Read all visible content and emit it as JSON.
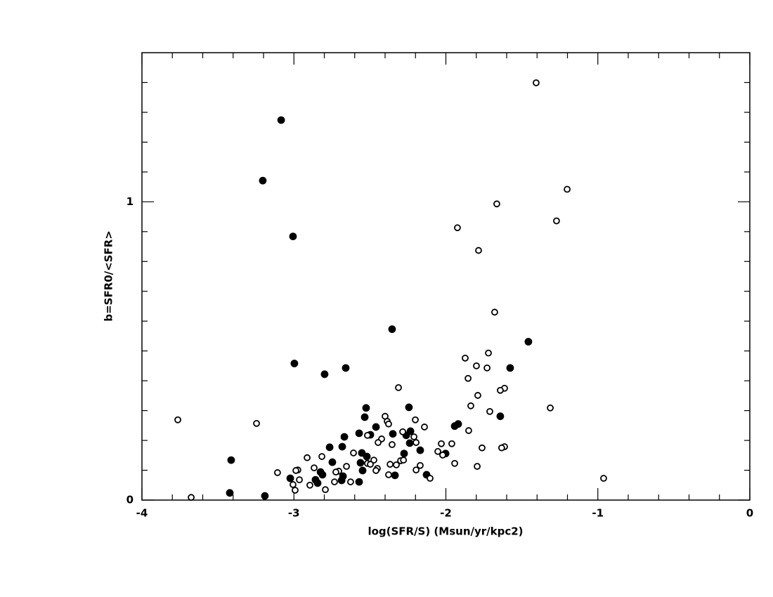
{
  "chart_data": {
    "type": "scatter",
    "xlabel": "log(SFR/S) (Msun/yr/kpc2)",
    "ylabel": "b=SFR0/<SFR>",
    "xlim": [
      -4,
      0
    ],
    "ylim": [
      0,
      1.5
    ],
    "xticks": [
      -4,
      -3,
      -2,
      -1,
      0
    ],
    "yticks": [
      0,
      1
    ],
    "xminorticks": [
      -3.8,
      -3.6,
      -3.4,
      -3.2,
      -2.8,
      -2.6,
      -2.4,
      -2.2,
      -1.8,
      -1.6,
      -1.4,
      -1.2,
      -0.8,
      -0.6,
      -0.4,
      -0.2
    ],
    "yminorticks": [
      0.1,
      0.2,
      0.3,
      0.4,
      0.5,
      0.6,
      0.7,
      0.8,
      0.9,
      1.1,
      1.2,
      1.3,
      1.4
    ],
    "series": [
      {
        "color": "#000000",
        "filled": true,
        "x": [
          -3.084,
          -3.205,
          -3.006,
          -2.354,
          -1.457,
          -2.997,
          -2.659,
          -2.798,
          -1.577,
          -2.243,
          -2.525,
          -2.534,
          -1.642,
          -1.919,
          -1.942,
          -2.46,
          -2.571,
          -2.668,
          -2.497,
          -2.349,
          -2.233,
          -2.261,
          -2.765,
          -2.682,
          -2.238,
          -2.169,
          -2.275,
          -2.002,
          -2.553,
          -2.52,
          -2.562,
          -2.747,
          -3.413,
          -2.548,
          -2.825,
          -2.812,
          -2.858,
          -2.677,
          -2.686,
          -2.844,
          -3.024,
          -2.571,
          -2.335,
          -2.127,
          -3.422,
          -3.191
        ],
        "values": [
          1.274,
          1.071,
          0.884,
          0.573,
          0.531,
          0.458,
          0.443,
          0.422,
          0.443,
          0.311,
          0.309,
          0.278,
          0.281,
          0.255,
          0.248,
          0.245,
          0.224,
          0.212,
          0.219,
          0.222,
          0.231,
          0.217,
          0.177,
          0.179,
          0.191,
          0.167,
          0.156,
          0.156,
          0.158,
          0.146,
          0.125,
          0.127,
          0.134,
          0.099,
          0.094,
          0.085,
          0.068,
          0.08,
          0.066,
          0.057,
          0.073,
          0.061,
          0.083,
          0.085,
          0.024,
          0.014
        ]
      },
      {
        "color": "#000000",
        "filled": false,
        "x": [
          -1.406,
          -1.202,
          -1.665,
          -1.924,
          -1.272,
          -1.785,
          -1.679,
          -1.72,
          -1.873,
          -1.799,
          -1.729,
          -1.854,
          -1.614,
          -1.642,
          -1.79,
          -2.312,
          -1.836,
          -1.313,
          -3.764,
          -3.246,
          -2.4,
          -2.386,
          -2.377,
          -2.201,
          -2.141,
          -1.711,
          -1.85,
          -2.284,
          -2.21,
          -2.516,
          -2.423,
          -2.446,
          -2.354,
          -2.196,
          -2.03,
          -1.961,
          -1.762,
          -1.614,
          -1.633,
          -2.053,
          -2.021,
          -1.942,
          -2.608,
          -2.474,
          -2.298,
          -2.279,
          -2.326,
          -2.367,
          -2.516,
          -2.497,
          -2.451,
          -2.46,
          -2.654,
          -2.705,
          -2.816,
          -2.913,
          -2.867,
          -2.724,
          -2.974,
          -2.987,
          -3.108,
          -2.964,
          -2.895,
          -3.006,
          -2.992,
          -2.793,
          -2.733,
          -2.627,
          -2.377,
          -2.196,
          -2.169,
          -2.104,
          -1.794,
          -0.962,
          -3.676
        ],
        "values": [
          1.399,
          1.042,
          0.993,
          0.913,
          0.936,
          0.837,
          0.63,
          0.493,
          0.476,
          0.45,
          0.443,
          0.408,
          0.375,
          0.368,
          0.351,
          0.377,
          0.316,
          0.309,
          0.269,
          0.257,
          0.281,
          0.264,
          0.255,
          0.269,
          0.245,
          0.297,
          0.233,
          0.229,
          0.212,
          0.217,
          0.205,
          0.193,
          0.186,
          0.193,
          0.189,
          0.189,
          0.175,
          0.179,
          0.175,
          0.163,
          0.151,
          0.123,
          0.158,
          0.134,
          0.132,
          0.134,
          0.118,
          0.12,
          0.123,
          0.12,
          0.106,
          0.099,
          0.113,
          0.097,
          0.146,
          0.142,
          0.108,
          0.094,
          0.101,
          0.099,
          0.092,
          0.068,
          0.05,
          0.052,
          0.033,
          0.035,
          0.061,
          0.061,
          0.085,
          0.101,
          0.116,
          0.073,
          0.113,
          0.073,
          0.009
        ]
      }
    ]
  }
}
